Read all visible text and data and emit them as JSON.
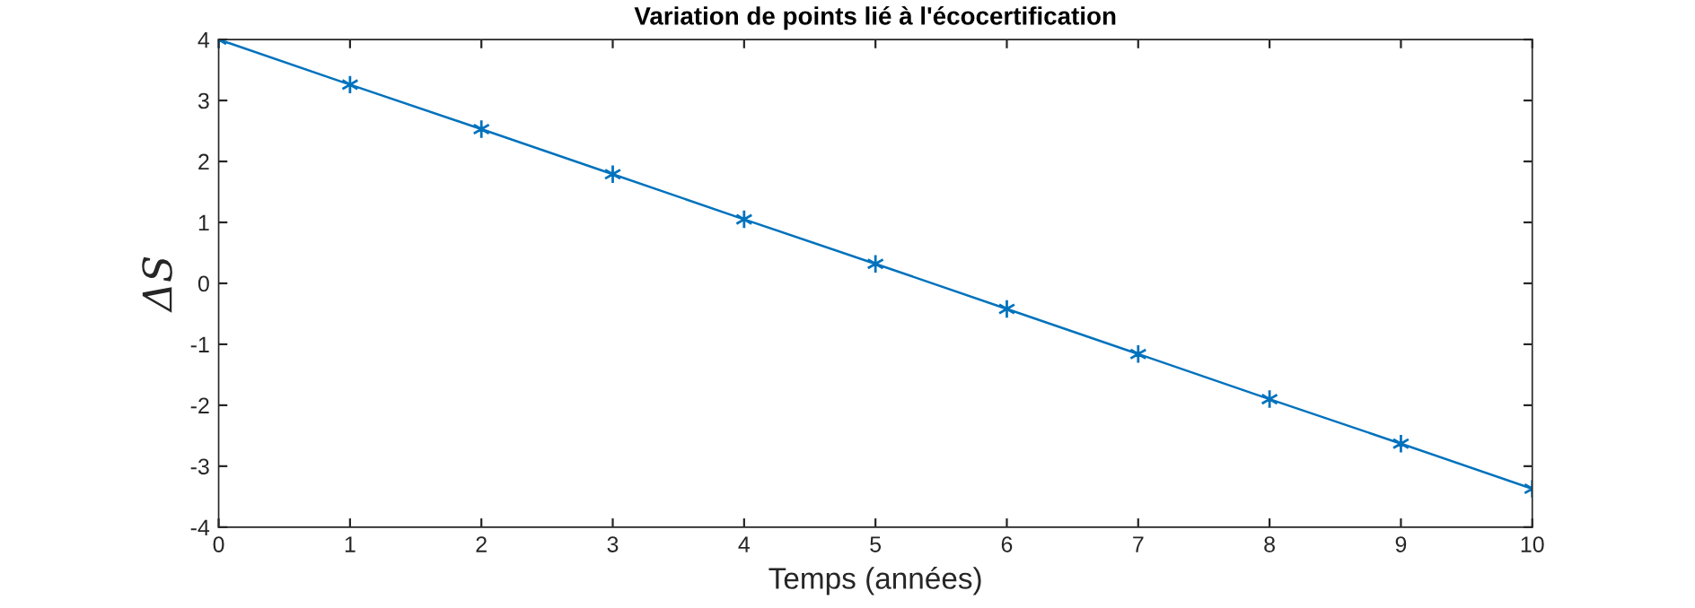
{
  "chart_data": {
    "type": "line",
    "title": "Variation de points lié à l'écocertification",
    "xlabel": "Temps (années)",
    "ylabel": "ΔS",
    "x": [
      0,
      1,
      2,
      3,
      4,
      5,
      6,
      7,
      8,
      9,
      10
    ],
    "series": [
      {
        "color": "#0072bd",
        "values": [
          4.0,
          3.26,
          2.53,
          1.79,
          1.05,
          0.32,
          -0.42,
          -1.16,
          -1.9,
          -2.63,
          -3.37
        ]
      }
    ],
    "xlim": [
      0,
      10
    ],
    "xticks": [
      0,
      1,
      2,
      3,
      4,
      5,
      6,
      7,
      8,
      9,
      10
    ],
    "ylim": [
      -4,
      4
    ],
    "yticks": [
      -4,
      -3,
      -2,
      -1,
      0,
      1,
      2,
      3,
      4
    ],
    "marker": "cross",
    "line_style": "solid",
    "grid": false,
    "legend": false
  }
}
